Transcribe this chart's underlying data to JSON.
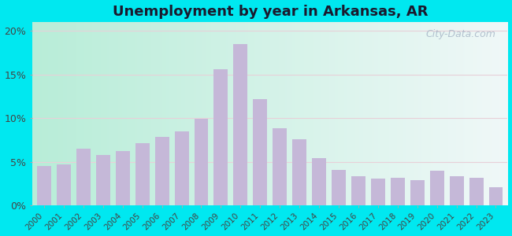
{
  "title": "Unemployment by year in Arkansas, AR",
  "years": [
    2000,
    2001,
    2002,
    2003,
    2004,
    2005,
    2006,
    2007,
    2008,
    2009,
    2010,
    2011,
    2012,
    2013,
    2014,
    2015,
    2016,
    2017,
    2018,
    2019,
    2020,
    2021,
    2022,
    2023
  ],
  "values": [
    4.5,
    4.7,
    6.5,
    5.8,
    6.2,
    7.1,
    7.8,
    8.5,
    9.9,
    15.6,
    18.5,
    12.2,
    8.8,
    7.6,
    5.4,
    4.1,
    3.3,
    3.1,
    3.2,
    2.9,
    4.0,
    3.3,
    3.2,
    2.1
  ],
  "bar_color": "#c5b8d8",
  "outer_bg": "#00e8f0",
  "grid_color": "#e8d0d8",
  "title_fontsize": 13,
  "title_color": "#1a1a2e",
  "ylim": [
    0,
    21
  ],
  "yticks": [
    0,
    5,
    10,
    15,
    20
  ],
  "ytick_labels": [
    "0%",
    "5%",
    "10%",
    "15%",
    "20%"
  ],
  "watermark": "City-Data.com",
  "bg_left": "#b8edd8",
  "bg_right": "#f0f8f8"
}
